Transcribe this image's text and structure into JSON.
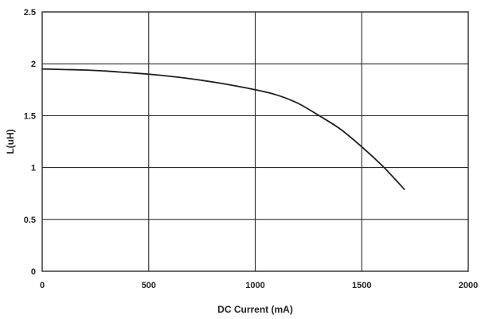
{
  "chart_data": {
    "type": "line",
    "title": "",
    "xlabel": "DC Current (mA)",
    "ylabel": "L(uH)",
    "xlim": [
      0,
      2000
    ],
    "ylim": [
      0,
      2.5
    ],
    "x_ticks": [
      0,
      500,
      1000,
      1500,
      2000
    ],
    "y_ticks": [
      0,
      0.5,
      1,
      1.5,
      2,
      2.5
    ],
    "x_tick_labels": [
      "0",
      "500",
      "1000",
      "1500",
      "2000"
    ],
    "y_tick_labels": [
      "0",
      "0.5",
      "1",
      "1.5",
      "2",
      "2.5"
    ],
    "grid": true,
    "series": [
      {
        "x": [
          0,
          100,
          200,
          300,
          400,
          500,
          600,
          700,
          800,
          900,
          1000,
          1100,
          1200,
          1300,
          1400,
          1500,
          1600,
          1700
        ],
        "y": [
          1.95,
          1.945,
          1.94,
          1.93,
          1.915,
          1.9,
          1.88,
          1.855,
          1.825,
          1.79,
          1.75,
          1.7,
          1.62,
          1.5,
          1.37,
          1.2,
          1.01,
          0.79
        ]
      }
    ],
    "colors": {
      "line": "#1e1e28",
      "grid": "#2b2b2b",
      "text": "#222222"
    }
  }
}
